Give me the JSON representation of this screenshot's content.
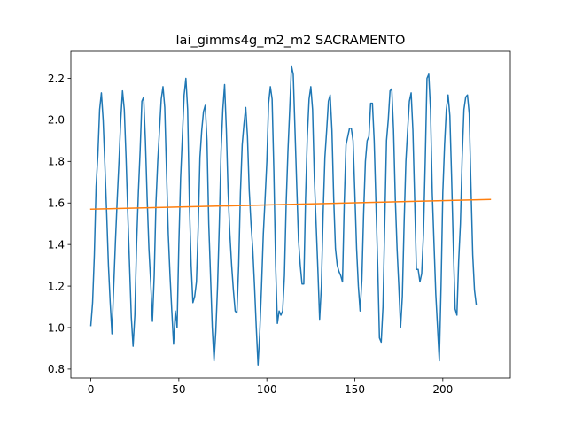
{
  "chart_data": {
    "type": "line",
    "title": "lai_gimms4g_m2_m2 SACRAMENTO",
    "xlabel": "",
    "ylabel": "",
    "xlim": [
      -11.35,
      238.35
    ],
    "ylim": [
      0.757,
      2.33
    ],
    "x_ticks": [
      0,
      50,
      100,
      150,
      200
    ],
    "x_tick_labels": [
      "0",
      "50",
      "100",
      "150",
      "200"
    ],
    "y_ticks": [
      0.8,
      1.0,
      1.2,
      1.4,
      1.6,
      1.8,
      2.0,
      2.2
    ],
    "y_tick_labels": [
      "0.8",
      "1.0",
      "1.2",
      "1.4",
      "1.6",
      "1.8",
      "2.0",
      "2.2"
    ],
    "grid": false,
    "legend": "none",
    "series": [
      {
        "color": "#1f77b4",
        "x_start": 0,
        "x_step": 1,
        "values": [
          1.01,
          1.12,
          1.35,
          1.68,
          1.83,
          2.05,
          2.13,
          2.0,
          1.78,
          1.55,
          1.3,
          1.12,
          0.97,
          1.2,
          1.42,
          1.62,
          1.8,
          2.0,
          2.14,
          2.05,
          1.82,
          1.55,
          1.3,
          1.05,
          0.91,
          1.06,
          1.4,
          1.65,
          1.85,
          2.09,
          2.11,
          1.9,
          1.62,
          1.38,
          1.22,
          1.03,
          1.25,
          1.6,
          1.8,
          1.95,
          2.1,
          2.16,
          2.06,
          1.75,
          1.45,
          1.25,
          1.08,
          0.92,
          1.08,
          1.0,
          1.4,
          1.72,
          1.92,
          2.12,
          2.2,
          2.05,
          1.6,
          1.3,
          1.12,
          1.15,
          1.22,
          1.48,
          1.82,
          1.95,
          2.04,
          2.07,
          1.9,
          1.5,
          1.25,
          1.0,
          0.84,
          0.98,
          1.2,
          1.5,
          1.85,
          2.05,
          2.17,
          1.95,
          1.65,
          1.45,
          1.3,
          1.18,
          1.08,
          1.07,
          1.3,
          1.65,
          1.88,
          1.98,
          2.06,
          1.92,
          1.66,
          1.5,
          1.38,
          1.2,
          1.0,
          0.82,
          0.98,
          1.2,
          1.45,
          1.62,
          1.8,
          2.08,
          2.16,
          2.1,
          1.75,
          1.3,
          1.02,
          1.08,
          1.06,
          1.08,
          1.25,
          1.6,
          1.85,
          2.05,
          2.26,
          2.22,
          1.95,
          1.68,
          1.42,
          1.3,
          1.21,
          1.21,
          1.62,
          1.92,
          2.1,
          2.16,
          2.05,
          1.72,
          1.5,
          1.28,
          1.04,
          1.2,
          1.55,
          1.82,
          1.95,
          2.09,
          2.12,
          1.95,
          1.62,
          1.38,
          1.3,
          1.27,
          1.25,
          1.22,
          1.6,
          1.88,
          1.92,
          1.96,
          1.96,
          1.9,
          1.65,
          1.38,
          1.2,
          1.08,
          1.23,
          1.55,
          1.8,
          1.9,
          1.92,
          2.08,
          2.08,
          1.9,
          1.6,
          1.3,
          0.95,
          0.93,
          1.1,
          1.5,
          1.9,
          2.0,
          2.14,
          2.15,
          1.95,
          1.62,
          1.38,
          1.2,
          1.0,
          1.15,
          1.5,
          1.8,
          1.95,
          2.09,
          2.13,
          1.95,
          1.62,
          1.28,
          1.28,
          1.22,
          1.26,
          1.45,
          1.8,
          2.2,
          2.22,
          2.05,
          1.65,
          1.4,
          1.16,
          1.0,
          0.84,
          1.2,
          1.65,
          1.88,
          2.05,
          2.12,
          2.02,
          1.72,
          1.38,
          1.09,
          1.06,
          1.32,
          1.5,
          1.82,
          2.05,
          2.11,
          2.12,
          2.03,
          1.68,
          1.35,
          1.18,
          1.11
        ]
      },
      {
        "color": "#ff7f0e",
        "x": [
          0,
          227
        ],
        "values": [
          1.57,
          1.617
        ]
      }
    ]
  }
}
